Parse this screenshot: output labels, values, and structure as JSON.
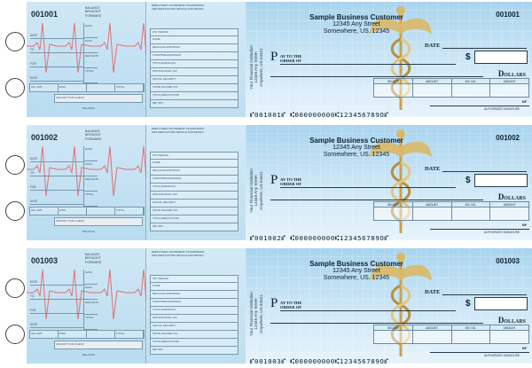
{
  "checks": [
    {
      "number": "001001",
      "micr": "⑈001001⑈ ⑆000000000⑆123456789O⑈"
    },
    {
      "number": "001002",
      "micr": "⑈001002⑈ ⑆000000000⑆123456789O⑈"
    },
    {
      "number": "001003",
      "micr": "⑈001003⑈ ⑆000000000⑆123456789O⑈"
    }
  ],
  "customer": {
    "name": "Sample Business Customer",
    "street": "12345 Any Street",
    "city": "Somewhere, US. 12345"
  },
  "bank": {
    "name": "Your Financial Institution",
    "street": "12345 Any Street",
    "city": "Anywhere, US 54321"
  },
  "labels": {
    "date": "DATE",
    "pay": "P",
    "pay_rest": "AY",
    "to_the": "TO THE",
    "order_of": "ORDER OF",
    "dollar_sign": "$",
    "dollars": "Dollars",
    "memo_cols": [
      "INVOICE",
      "AMOUNT",
      "INV. NO.",
      "AMOUNT"
    ],
    "mp": "MP",
    "signature": "AUTHORIZED SIGNATURE",
    "balance_forward": [
      "BALANCE",
      "BROUGHT",
      "FORWARD"
    ],
    "stub_fields": [
      "DATE",
      "TO",
      "FOR",
      "DATE"
    ],
    "stub_cols": [
      "DATE",
      "DATE",
      "DEPOSITS",
      "TOTAL"
    ],
    "stub_bottom": [
      "INV. AMT.",
      "DISC."
    ],
    "amount_this_check": "AMOUNT THIS CHECK",
    "balance": "BALANCE",
    "employee_head": [
      "EMPLOYEE'S STATEMENT OF EARNINGS",
      "AND DEDUCTIONS DETACH AND RETAIN"
    ],
    "payroll_rows": [
      "PAY PERIOD",
      "NAME",
      "REGULAR EARNINGS",
      "OVERTIME EARNINGS",
      "TOTAL EARNINGS",
      "WITHHOLDING TAX",
      "SOCIAL SECURITY",
      "STATE INCOME TAX",
      "TOTAL DEDUCTIONS",
      "NET PAY"
    ],
    "total": "TOTAL"
  },
  "colors": {
    "check_top": "#a9d4ee",
    "check_bottom": "#e6f3fb",
    "ekg_line": "#e07070",
    "caduceus_gold": "#d9b867"
  }
}
